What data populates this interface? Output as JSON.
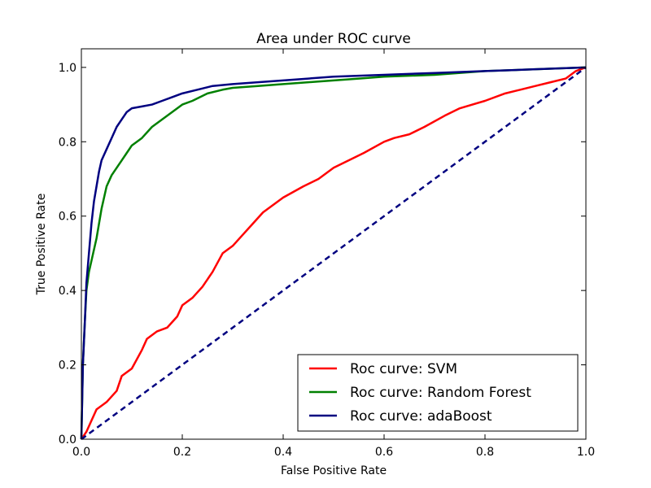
{
  "chart_data": {
    "type": "line",
    "title": "Area under ROC curve",
    "xlabel": "False Positive Rate",
    "ylabel": "True Positive Rate",
    "xlim": [
      0.0,
      1.0
    ],
    "ylim": [
      0.0,
      1.05
    ],
    "xticks": [
      0.0,
      0.2,
      0.4,
      0.6,
      0.8,
      1.0
    ],
    "yticks": [
      0.0,
      0.2,
      0.4,
      0.6,
      0.8,
      1.0
    ],
    "xtick_labels": [
      "0.0",
      "0.2",
      "0.4",
      "0.6",
      "0.8",
      "1.0"
    ],
    "ytick_labels": [
      "0.0",
      "0.2",
      "0.4",
      "0.6",
      "0.8",
      "1.0"
    ],
    "grid": false,
    "legend_position": "lower-right",
    "series": [
      {
        "name": "Roc curve: SVM",
        "color": "#ff0000",
        "style": "solid",
        "x": [
          0.0,
          0.01,
          0.02,
          0.03,
          0.05,
          0.07,
          0.08,
          0.1,
          0.12,
          0.13,
          0.15,
          0.17,
          0.19,
          0.2,
          0.22,
          0.24,
          0.26,
          0.28,
          0.3,
          0.32,
          0.34,
          0.36,
          0.4,
          0.44,
          0.47,
          0.5,
          0.53,
          0.56,
          0.6,
          0.62,
          0.65,
          0.68,
          0.72,
          0.75,
          0.8,
          0.84,
          0.87,
          0.9,
          0.93,
          0.96,
          0.98,
          1.0
        ],
        "y": [
          0.0,
          0.02,
          0.05,
          0.08,
          0.1,
          0.13,
          0.17,
          0.19,
          0.24,
          0.27,
          0.29,
          0.3,
          0.33,
          0.36,
          0.38,
          0.41,
          0.45,
          0.5,
          0.52,
          0.55,
          0.58,
          0.61,
          0.65,
          0.68,
          0.7,
          0.73,
          0.75,
          0.77,
          0.8,
          0.81,
          0.82,
          0.84,
          0.87,
          0.89,
          0.91,
          0.93,
          0.94,
          0.95,
          0.96,
          0.97,
          0.99,
          1.0
        ]
      },
      {
        "name": "Roc curve: Random Forest",
        "color": "#008000",
        "style": "solid",
        "x": [
          0.0,
          0.003,
          0.007,
          0.01,
          0.015,
          0.02,
          0.03,
          0.04,
          0.05,
          0.06,
          0.07,
          0.08,
          0.09,
          0.1,
          0.12,
          0.14,
          0.16,
          0.18,
          0.2,
          0.22,
          0.25,
          0.28,
          0.3,
          0.35,
          0.4,
          0.45,
          0.5,
          0.55,
          0.6,
          0.7,
          0.8,
          0.9,
          1.0
        ],
        "y": [
          0.0,
          0.2,
          0.32,
          0.4,
          0.45,
          0.48,
          0.54,
          0.62,
          0.68,
          0.71,
          0.73,
          0.75,
          0.77,
          0.79,
          0.81,
          0.84,
          0.86,
          0.88,
          0.9,
          0.91,
          0.93,
          0.94,
          0.945,
          0.95,
          0.955,
          0.96,
          0.965,
          0.97,
          0.975,
          0.98,
          0.99,
          0.995,
          1.0
        ]
      },
      {
        "name": "Roc curve: adaBoost",
        "color": "#000080",
        "style": "solid",
        "x": [
          0.0,
          0.003,
          0.007,
          0.01,
          0.015,
          0.02,
          0.025,
          0.03,
          0.035,
          0.04,
          0.05,
          0.06,
          0.07,
          0.08,
          0.09,
          0.1,
          0.12,
          0.14,
          0.16,
          0.18,
          0.2,
          0.23,
          0.26,
          0.3,
          0.35,
          0.4,
          0.45,
          0.5,
          0.6,
          0.7,
          0.8,
          0.9,
          1.0
        ],
        "y": [
          0.0,
          0.2,
          0.32,
          0.42,
          0.5,
          0.58,
          0.64,
          0.68,
          0.72,
          0.75,
          0.78,
          0.81,
          0.84,
          0.86,
          0.88,
          0.89,
          0.895,
          0.9,
          0.91,
          0.92,
          0.93,
          0.94,
          0.95,
          0.955,
          0.96,
          0.965,
          0.97,
          0.975,
          0.98,
          0.985,
          0.99,
          0.995,
          1.0
        ]
      },
      {
        "name": "",
        "color": "#000080",
        "style": "dashed",
        "x": [
          0.0,
          1.0
        ],
        "y": [
          0.0,
          1.0
        ]
      }
    ],
    "legend": [
      {
        "label": "Roc curve: SVM",
        "color": "#ff0000"
      },
      {
        "label": "Roc curve: Random Forest",
        "color": "#008000"
      },
      {
        "label": "Roc curve: adaBoost",
        "color": "#000080"
      }
    ]
  }
}
